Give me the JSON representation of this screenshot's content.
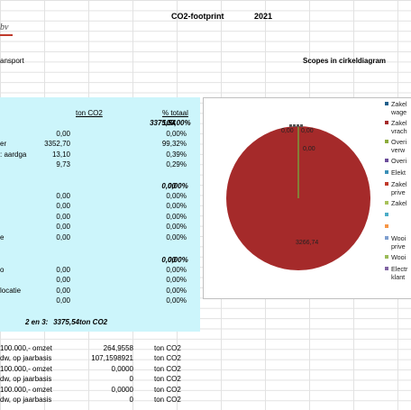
{
  "header": {
    "title": "CO2-footprint",
    "year": "2021",
    "logo_text": "bv"
  },
  "left_label": "ansport",
  "chart_heading": "Scopes in cirkeldiagram",
  "table": {
    "col_ton": "ton CO2",
    "col_pct": "% totaal",
    "total_value": "3375,54",
    "total_pct": "100,00%",
    "rows1": [
      {
        "label": "",
        "value": "0,00",
        "pct": "0,00%"
      },
      {
        "label": "er",
        "value": "3352,70",
        "pct": "99,32%"
      },
      {
        "label": ": aardga",
        "value": "13,10",
        "pct": "0,39%"
      },
      {
        "label": "",
        "value": "9,73",
        "pct": "0,29%"
      }
    ],
    "subtotal2_value": "0,00",
    "subtotal2_pct": "0,00%",
    "rows2": [
      {
        "label": "",
        "value": "0,00",
        "pct": "0,00%"
      },
      {
        "label": "",
        "value": "0,00",
        "pct": "0,00%"
      },
      {
        "label": "",
        "value": "0,00",
        "pct": "0,00%"
      },
      {
        "label": "",
        "value": "0,00",
        "pct": "0,00%"
      },
      {
        "label": "e",
        "value": "0,00",
        "pct": "0,00%"
      }
    ],
    "subtotal3_value": "0,00",
    "subtotal3_pct": "0,00%",
    "rows3": [
      {
        "label": "o",
        "value": "0,00",
        "pct": "0,00%"
      },
      {
        "label": "",
        "value": "0,00",
        "pct": "0,00%"
      },
      {
        "label": "locatie",
        "value": "0,00",
        "pct": "0,00%"
      },
      {
        "label": "",
        "value": "0,00",
        "pct": "0,00%"
      }
    ],
    "sum_label": "2 en 3:",
    "sum_value": "3375,54",
    "sum_unit": "ton CO2"
  },
  "bottom_rows": [
    {
      "label": "100.000,- omzet",
      "value": "264,9558",
      "unit": "ton CO2"
    },
    {
      "label": "dw, op jaarbasis",
      "value": "107,1598921",
      "unit": "ton CO2"
    },
    {
      "label": "100.000,- omzet",
      "value": "0,0000",
      "unit": "ton CO2"
    },
    {
      "label": "dw, op jaarbasis",
      "value": "0",
      "unit": "ton CO2"
    },
    {
      "label": "100.000,- omzet",
      "value": "0,0000",
      "unit": "ton CO2"
    },
    {
      "label": "dw, op jaarbasis",
      "value": "0",
      "unit": "ton CO2"
    }
  ],
  "chart_data": {
    "type": "pie",
    "slices": [
      {
        "label": "Zakelijk wage",
        "value": 0.0,
        "color": "#1f5f8b"
      },
      {
        "label": "Zakelijk vrach",
        "value": 3266.74,
        "color": "#a52a2a"
      },
      {
        "label": "Overig verw",
        "value": 0.0,
        "color": "#8cab3c"
      },
      {
        "label": "Overig",
        "value": 0.0,
        "color": "#6b4c9a"
      },
      {
        "label": "Elektr",
        "value": 0.0,
        "color": "#3a8fb7"
      },
      {
        "label": "Zakelijk prive",
        "value": 0.0,
        "color": "#c0392b"
      },
      {
        "label": "Zakelijk",
        "value": 0.0,
        "color": "#a8c25a"
      }
    ],
    "data_labels": [
      "0,00",
      "0,00",
      "0,00",
      "3266,74"
    ],
    "legend": [
      {
        "text": "Zakel",
        "text2": "wage",
        "color": "#1f5f8b"
      },
      {
        "text": "Zakel",
        "text2": "vrach",
        "color": "#a52a2a"
      },
      {
        "text": "Overi",
        "text2": "verw",
        "color": "#8cab3c"
      },
      {
        "text": "Overi",
        "text2": "",
        "color": "#6b4c9a"
      },
      {
        "text": "Elekt",
        "text2": "",
        "color": "#3a8fb7"
      },
      {
        "text": "Zakel",
        "text2": "prive",
        "color": "#c0392b"
      },
      {
        "text": "Zakel",
        "text2": "",
        "color": "#a8c25a"
      },
      {
        "text": "",
        "text2": "",
        "color": "#4bacc6"
      },
      {
        "text": "",
        "text2": "",
        "color": "#f79646"
      },
      {
        "text": "Wooi",
        "text2": "prive",
        "color": "#7f9fcf"
      },
      {
        "text": "Wooi",
        "text2": "",
        "color": "#9bbb59"
      },
      {
        "text": "Electr",
        "text2": "klant",
        "color": "#8064a2"
      }
    ]
  }
}
